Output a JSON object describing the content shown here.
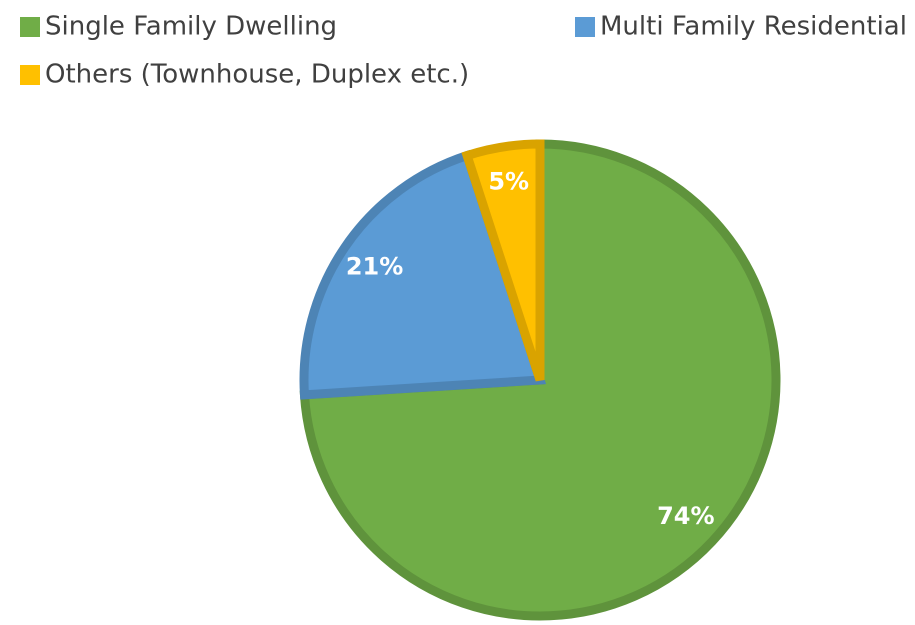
{
  "chart_data": {
    "type": "pie",
    "categories": [
      "Single Family Dwelling",
      "Multi Family Residential",
      "Others (Townhouse, Duplex etc.)"
    ],
    "values": [
      74,
      21,
      5
    ],
    "value_labels": [
      "74%",
      "21%",
      "5%"
    ],
    "colors": [
      "#70ad47",
      "#5b9bd5",
      "#ffc000"
    ],
    "legend": "top"
  }
}
